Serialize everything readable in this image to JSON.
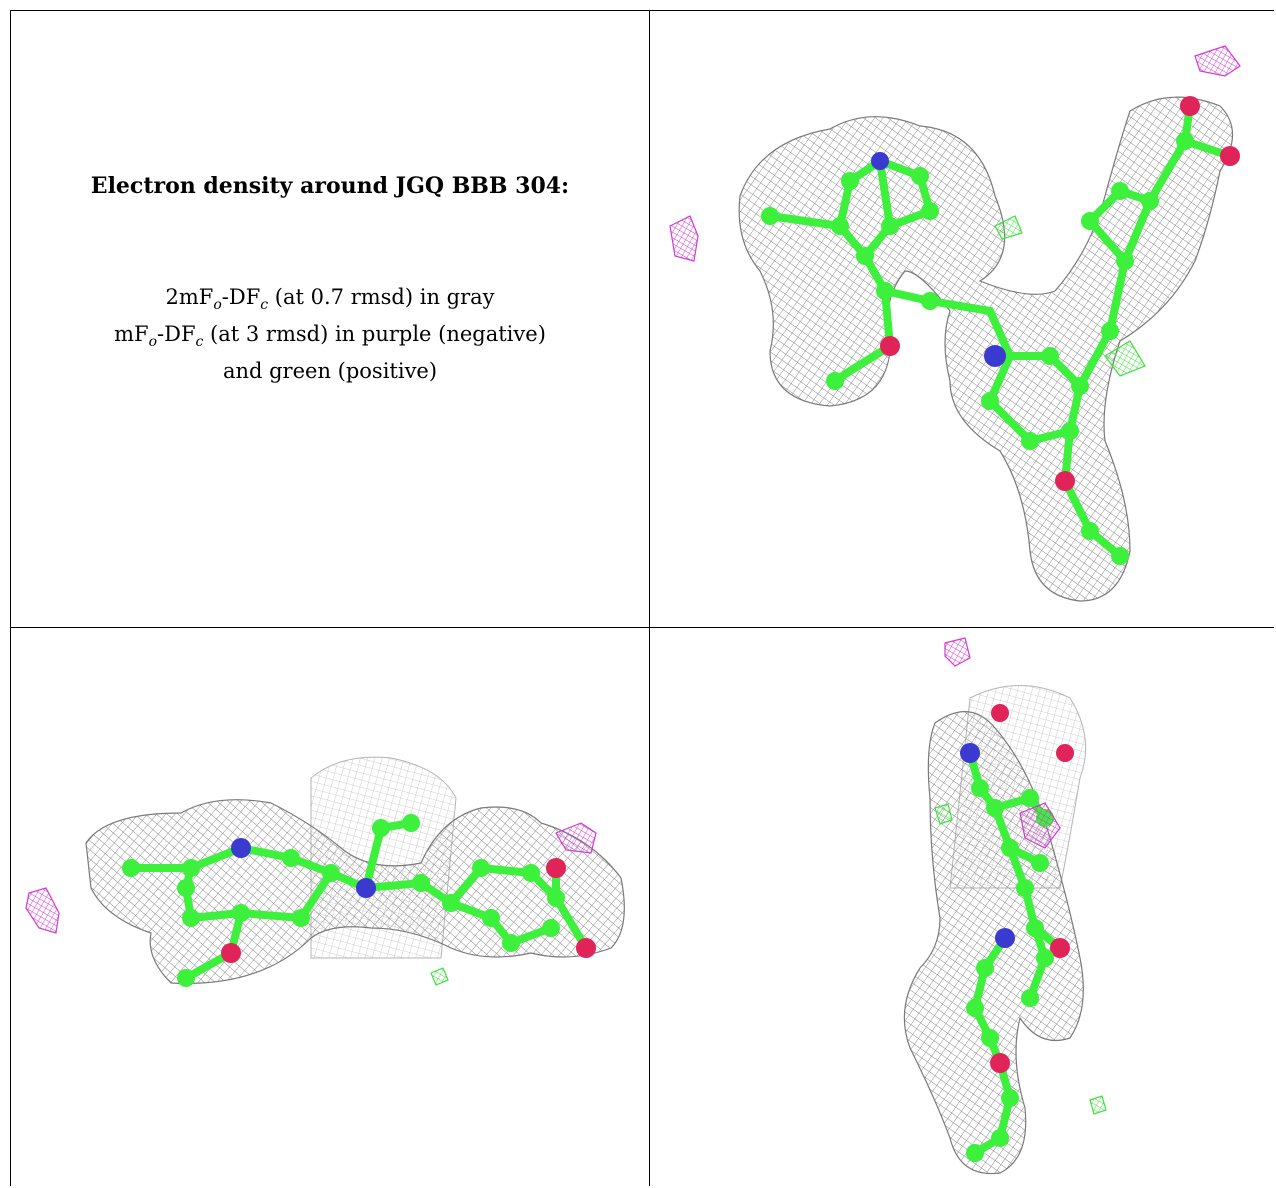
{
  "title": "Electron density around JGQ BBB 304:",
  "legend": {
    "line1": {
      "prefix": "2mF",
      "sub1": "o",
      "mid": "-DF",
      "sub2": "c",
      "suffix": " (at 0.7 rmsd) in gray"
    },
    "line2": {
      "prefix": "mF",
      "sub1": "o",
      "mid": "-DF",
      "sub2": "c",
      "suffix": " (at 3 rmsd) in purple (negative)"
    },
    "line3": "and green (positive)"
  },
  "colors": {
    "mesh_gray": "#8a8a8a",
    "carbon_green": "#3cf03c",
    "nitrogen_blue": "#3a3ad0",
    "oxygen_red": "#e0245a",
    "negative_purple": "#d23ad2",
    "positive_green": "#40e040"
  },
  "views": [
    {
      "name": "front-view"
    },
    {
      "name": "side-view"
    },
    {
      "name": "top-view"
    }
  ]
}
